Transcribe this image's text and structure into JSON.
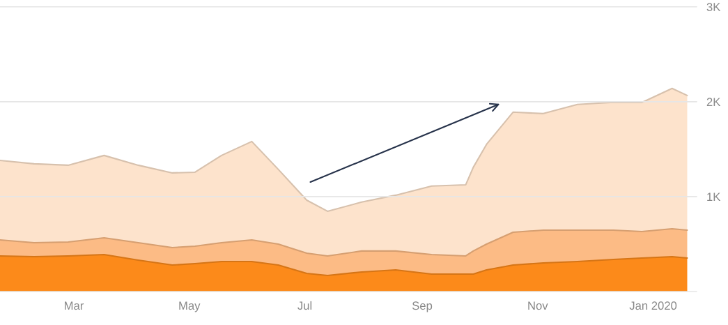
{
  "chart_data": {
    "type": "area",
    "stacked": true,
    "x": [
      "2019-01-21",
      "2019-02-08",
      "2019-02-26",
      "2019-03-17",
      "2019-04-04",
      "2019-04-22",
      "2019-05-04",
      "2019-05-18",
      "2019-06-03",
      "2019-06-17",
      "2019-07-02",
      "2019-07-13",
      "2019-07-31",
      "2019-08-18",
      "2019-09-06",
      "2019-09-24",
      "2019-09-28",
      "2019-10-05",
      "2019-10-19",
      "2019-11-04",
      "2019-11-22",
      "2019-12-11",
      "2019-12-26",
      "2020-01-11",
      "2020-01-19"
    ],
    "series": [
      {
        "color": "#fc8a1a",
        "values": [
          375,
          368,
          375,
          390,
          331,
          279,
          294,
          316,
          316,
          279,
          191,
          169,
          206,
          228,
          184,
          184,
          184,
          228,
          279,
          301,
          316,
          338,
          353,
          368,
          353
        ]
      },
      {
        "color": "#fcbb85",
        "values": [
          169,
          147,
          147,
          176,
          184,
          184,
          184,
          199,
          228,
          221,
          213,
          206,
          221,
          199,
          206,
          191,
          243,
          272,
          346,
          346,
          331,
          309,
          279,
          294,
          294
        ]
      },
      {
        "color": "#fde3cc",
        "values": [
          838,
          831,
          809,
          868,
          816,
          787,
          779,
          919,
          1037,
          787,
          559,
          471,
          515,
          588,
          721,
          750,
          882,
          1051,
          1265,
          1228,
          1324,
          1346,
          1360,
          1478,
          1419
        ]
      }
    ],
    "xlim": [
      "2019-01-21",
      "2020-01-24"
    ],
    "xticks": [
      {
        "value": "2019-03-01",
        "label": "Mar"
      },
      {
        "value": "2019-05-01",
        "label": "May"
      },
      {
        "value": "2019-07-01",
        "label": "Jul"
      },
      {
        "value": "2019-09-01",
        "label": "Sep"
      },
      {
        "value": "2019-11-01",
        "label": "Nov"
      },
      {
        "value": "2020-01-01",
        "label": "Jan 2020"
      }
    ],
    "ylim": [
      0,
      3000
    ],
    "yticks": [
      {
        "value": 0,
        "label": null
      },
      {
        "value": 1000,
        "label": "1K"
      },
      {
        "value": 2000,
        "label": "2K"
      },
      {
        "value": 3000,
        "label": "3K"
      }
    ],
    "grid": "y",
    "legend": false
  }
}
